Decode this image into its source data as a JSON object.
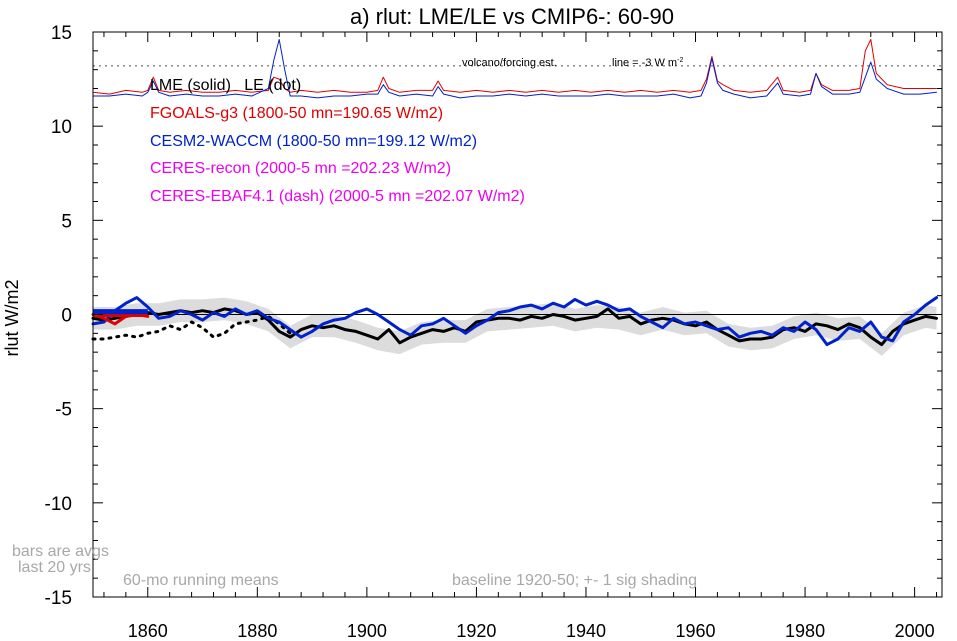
{
  "chart_data": {
    "type": "line",
    "title": "a) rlut: LME/LE vs CMIP6-: 60-90",
    "ylabel": "rlut W/m2",
    "xlabel": "",
    "xlim": [
      1850,
      2005
    ],
    "ylim": [
      -15,
      15
    ],
    "xticks": [
      1860,
      1880,
      1900,
      1920,
      1940,
      1960,
      1980,
      2000
    ],
    "yticks": [
      -15,
      -10,
      -5,
      0,
      5,
      10,
      15
    ],
    "ytick_labels": [
      "-15",
      "-10",
      "-5",
      "0",
      "5",
      "10",
      "15"
    ],
    "grid": false,
    "zero_line": 0,
    "legend": [
      {
        "label": "LME (solid)   LE (dot)",
        "color": "#000000"
      },
      {
        "label": "FGOALS-g3 (1800-50 mn=190.65 W/m2)",
        "color": "#e00000"
      },
      {
        "label": "CESM2-WACCM (1800-50 mn=199.12 W/m2)",
        "color": "#0022cc"
      },
      {
        "label": "CERES-recon (2000-5 mn =202.23 W/m2)",
        "color": "#ee00ee"
      },
      {
        "label": "CERES-EBAF4.1 (dash) (2000-5 mn =202.07 W/m2)",
        "color": "#ee00ee"
      }
    ],
    "annotations": {
      "volcano_label": "volcano/forcing est.",
      "line_label": "line = -3 W m",
      "line_label_sup": "-2",
      "bars_note_1": "bars are avgs",
      "bars_note_2": "last 20 yrs",
      "running_means": "60-mo running means",
      "baseline_note": "baseline 1920-50; +- 1 sig shading"
    },
    "volcano_dotted_level": 13.2,
    "series": [
      {
        "name": "LME (solid)",
        "color": "#000000",
        "style": "solid",
        "x": [
          1850,
          1852,
          1854,
          1856,
          1858,
          1860,
          1862,
          1864,
          1866,
          1868,
          1870,
          1872,
          1874,
          1876,
          1878,
          1880,
          1882,
          1884,
          1886,
          1888,
          1890,
          1892,
          1894,
          1896,
          1898,
          1900,
          1902,
          1904,
          1906,
          1908,
          1910,
          1912,
          1914,
          1916,
          1918,
          1920,
          1922,
          1924,
          1926,
          1928,
          1930,
          1932,
          1934,
          1936,
          1938,
          1940,
          1942,
          1944,
          1946,
          1948,
          1950,
          1952,
          1954,
          1956,
          1958,
          1960,
          1962,
          1964,
          1966,
          1968,
          1970,
          1972,
          1974,
          1976,
          1978,
          1980,
          1982,
          1984,
          1986,
          1988,
          1990,
          1992,
          1994,
          1996,
          1998,
          2000,
          2002,
          2004
        ],
        "y": [
          -0.2,
          -0.3,
          -0.2,
          -0.1,
          0.0,
          0.1,
          0.0,
          0.1,
          0.2,
          0.1,
          0.2,
          0.1,
          0.3,
          0.2,
          0.0,
          0.1,
          -0.3,
          -0.9,
          -1.2,
          -0.8,
          -0.6,
          -0.7,
          -0.6,
          -0.8,
          -0.9,
          -1.1,
          -1.3,
          -0.8,
          -1.5,
          -1.2,
          -1.0,
          -0.8,
          -0.9,
          -0.7,
          -0.9,
          -0.4,
          -0.3,
          -0.2,
          -0.2,
          -0.3,
          -0.1,
          -0.2,
          0.0,
          -0.1,
          -0.3,
          -0.2,
          -0.1,
          0.3,
          -0.2,
          -0.1,
          -0.5,
          -0.3,
          -0.2,
          -0.3,
          -0.5,
          -0.6,
          -0.4,
          -0.8,
          -1.1,
          -1.4,
          -1.3,
          -1.3,
          -1.2,
          -0.8,
          -0.7,
          -0.9,
          -0.5,
          -0.6,
          -0.8,
          -0.5,
          -0.7,
          -1.2,
          -1.6,
          -0.9,
          -0.5,
          -0.3,
          -0.1,
          -0.2
        ]
      },
      {
        "name": "LE (dot)",
        "color": "#000000",
        "style": "dotted",
        "x": [
          1850,
          1852,
          1854,
          1856,
          1858,
          1860,
          1862,
          1864,
          1866,
          1868,
          1870,
          1872,
          1874,
          1876,
          1878,
          1880,
          1882,
          1884,
          1886
        ],
        "y": [
          -1.3,
          -1.3,
          -1.2,
          -1.1,
          -1.2,
          -1.0,
          -0.9,
          -0.6,
          -0.8,
          -0.4,
          -0.7,
          -1.2,
          -1.0,
          -0.5,
          -0.4,
          -0.3,
          -0.1,
          -0.5,
          -1.0
        ]
      },
      {
        "name": "CESM2-WACCM",
        "color": "#0022cc",
        "style": "solid",
        "x": [
          1850,
          1852,
          1854,
          1856,
          1858,
          1860,
          1862,
          1864,
          1866,
          1868,
          1870,
          1872,
          1874,
          1876,
          1878,
          1880,
          1882,
          1884,
          1886,
          1888,
          1890,
          1892,
          1894,
          1896,
          1898,
          1900,
          1902,
          1904,
          1906,
          1908,
          1910,
          1912,
          1914,
          1916,
          1918,
          1920,
          1922,
          1924,
          1926,
          1928,
          1930,
          1932,
          1934,
          1936,
          1938,
          1940,
          1942,
          1944,
          1946,
          1948,
          1950,
          1952,
          1954,
          1956,
          1958,
          1960,
          1962,
          1964,
          1966,
          1968,
          1970,
          1972,
          1974,
          1976,
          1978,
          1980,
          1982,
          1984,
          1986,
          1988,
          1990,
          1992,
          1994,
          1996,
          1998,
          2000,
          2002,
          2004
        ],
        "y": [
          -0.5,
          -0.4,
          0.2,
          0.6,
          0.9,
          0.4,
          -0.2,
          -0.1,
          0.2,
          0.0,
          -0.3,
          0.1,
          -0.1,
          0.3,
          0.0,
          0.2,
          -0.2,
          -0.4,
          -0.8,
          -1.2,
          -0.9,
          -0.5,
          -0.3,
          -0.2,
          0.1,
          0.3,
          0.0,
          -0.4,
          -0.8,
          -1.1,
          -0.6,
          -0.5,
          -0.2,
          -0.6,
          -1.0,
          -0.6,
          -0.3,
          0.1,
          0.2,
          0.4,
          0.5,
          0.3,
          0.6,
          0.4,
          0.8,
          0.5,
          0.7,
          0.5,
          0.2,
          0.3,
          -0.1,
          -0.4,
          -0.7,
          -0.2,
          -0.5,
          -0.4,
          -0.6,
          -0.8,
          -0.7,
          -1.2,
          -1.0,
          -0.9,
          -1.1,
          -0.7,
          -0.9,
          -0.4,
          -0.8,
          -1.6,
          -1.3,
          -0.7,
          -0.9,
          -0.4,
          -1.2,
          -1.4,
          -0.4,
          0.0,
          0.5,
          0.9
        ]
      },
      {
        "name": "FGOALS-g3",
        "color": "#e00000",
        "style": "solid",
        "x": [
          1850,
          1852,
          1854,
          1856,
          1858,
          1860
        ],
        "y": [
          0.0,
          -0.2,
          -0.5,
          -0.1,
          0.0,
          -0.1
        ]
      },
      {
        "name": "LME volcano/forcing est.",
        "color": "#e00000",
        "style": "solid",
        "offset_line": true,
        "x": [
          1850,
          1853,
          1856,
          1859,
          1860,
          1861,
          1862,
          1864,
          1867,
          1870,
          1873,
          1876,
          1879,
          1882,
          1883,
          1884,
          1885,
          1886,
          1888,
          1891,
          1894,
          1897,
          1900,
          1902,
          1903,
          1904,
          1906,
          1909,
          1912,
          1913,
          1914,
          1917,
          1920,
          1923,
          1926,
          1929,
          1932,
          1935,
          1938,
          1941,
          1944,
          1947,
          1950,
          1953,
          1956,
          1959,
          1961,
          1962,
          1963,
          1964,
          1965,
          1967,
          1970,
          1973,
          1975,
          1976,
          1979,
          1981,
          1982,
          1983,
          1985,
          1988,
          1990,
          1991,
          1992,
          1993,
          1995,
          1998,
          2001,
          2004
        ],
        "y": [
          11.8,
          11.7,
          11.9,
          11.8,
          11.9,
          12.6,
          11.9,
          11.8,
          11.9,
          11.8,
          11.8,
          11.9,
          11.8,
          11.9,
          12.6,
          12.5,
          12.0,
          11.8,
          11.9,
          11.8,
          11.9,
          11.8,
          11.8,
          11.9,
          12.6,
          12.0,
          11.8,
          11.9,
          11.9,
          12.4,
          11.9,
          11.8,
          11.9,
          11.8,
          11.9,
          11.8,
          11.9,
          11.8,
          11.9,
          11.8,
          11.9,
          11.8,
          11.9,
          11.8,
          11.9,
          11.8,
          11.9,
          12.5,
          13.7,
          12.4,
          12.2,
          11.9,
          11.8,
          11.9,
          12.6,
          11.9,
          11.8,
          11.9,
          12.8,
          12.2,
          11.9,
          11.9,
          12.0,
          14.0,
          14.6,
          12.8,
          12.2,
          12.0,
          12.0,
          12.0
        ]
      },
      {
        "name": "CESM2 volcano/forcing est.",
        "color": "#0022cc",
        "style": "solid",
        "offset_line": true,
        "x": [
          1850,
          1853,
          1856,
          1859,
          1860,
          1861,
          1862,
          1864,
          1867,
          1870,
          1873,
          1876,
          1879,
          1882,
          1883,
          1884,
          1885,
          1886,
          1888,
          1891,
          1894,
          1897,
          1900,
          1902,
          1903,
          1904,
          1906,
          1909,
          1912,
          1913,
          1914,
          1917,
          1920,
          1923,
          1926,
          1929,
          1932,
          1935,
          1938,
          1941,
          1944,
          1947,
          1950,
          1953,
          1956,
          1959,
          1961,
          1962,
          1963,
          1964,
          1965,
          1967,
          1970,
          1973,
          1975,
          1976,
          1979,
          1981,
          1982,
          1983,
          1985,
          1988,
          1990,
          1991,
          1992,
          1993,
          1995,
          1998,
          2001,
          2004
        ],
        "y": [
          11.6,
          11.6,
          11.7,
          11.6,
          11.8,
          12.4,
          11.8,
          11.6,
          11.7,
          11.6,
          11.6,
          11.7,
          11.6,
          12.0,
          13.5,
          14.6,
          13.0,
          11.6,
          11.6,
          11.5,
          11.6,
          11.6,
          11.7,
          11.7,
          12.2,
          11.8,
          11.6,
          11.7,
          11.6,
          12.1,
          11.7,
          11.5,
          11.6,
          11.6,
          11.7,
          11.6,
          11.7,
          11.6,
          11.6,
          11.6,
          11.7,
          11.6,
          11.6,
          11.6,
          11.7,
          11.5,
          11.6,
          12.3,
          13.6,
          12.3,
          11.9,
          11.7,
          11.5,
          11.6,
          12.3,
          11.7,
          11.6,
          11.7,
          12.8,
          12.1,
          11.7,
          11.7,
          11.8,
          12.6,
          13.4,
          12.5,
          12.0,
          11.7,
          11.7,
          11.8
        ]
      }
    ],
    "shading": {
      "color": "#dcdcdc",
      "x": [
        1850,
        1854,
        1858,
        1862,
        1866,
        1870,
        1874,
        1878,
        1882,
        1886,
        1890,
        1894,
        1898,
        1902,
        1906,
        1910,
        1914,
        1918,
        1922,
        1926,
        1930,
        1934,
        1938,
        1942,
        1946,
        1950,
        1954,
        1958,
        1962,
        1966,
        1970,
        1974,
        1978,
        1982,
        1986,
        1990,
        1994,
        1998,
        2002,
        2004
      ],
      "y": [
        -0.2,
        -0.2,
        0.0,
        0.0,
        0.2,
        0.2,
        0.3,
        0.1,
        -0.3,
        -1.2,
        -0.6,
        -0.6,
        -0.9,
        -1.3,
        -1.5,
        -1.0,
        -0.9,
        -0.9,
        -0.3,
        -0.2,
        -0.1,
        0.0,
        -0.3,
        -0.1,
        -0.2,
        -0.5,
        -0.2,
        -0.5,
        -0.4,
        -1.1,
        -1.3,
        -1.2,
        -0.7,
        -0.5,
        -0.8,
        -0.7,
        -1.6,
        -0.5,
        -0.1,
        -0.2
      ],
      "sigma": 0.6
    },
    "bars": [
      {
        "name": "FGOALS-g3 bar",
        "color": "#e00000",
        "x": [
          1850,
          1860
        ],
        "y": 0.0
      },
      {
        "name": "CESM2-WACCM bar",
        "color": "#0022cc",
        "x": [
          1850,
          1860
        ],
        "y": 0.15
      }
    ]
  }
}
